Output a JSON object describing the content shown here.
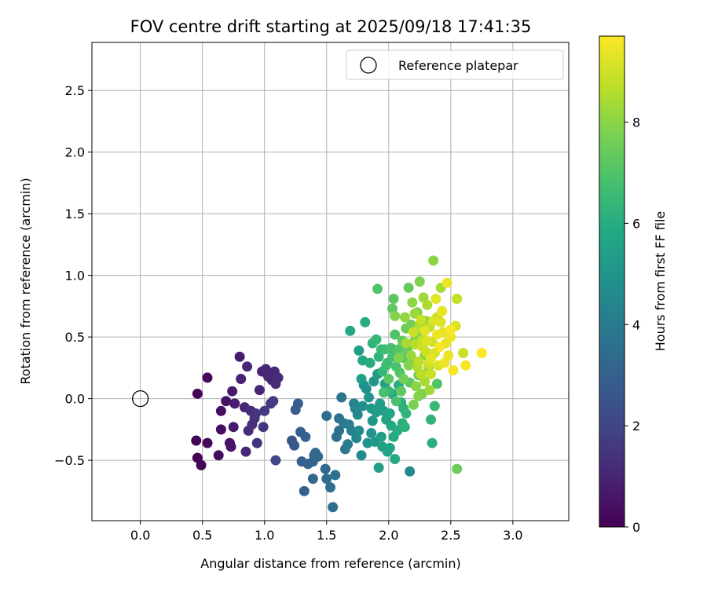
{
  "chart_data": {
    "type": "scatter",
    "title": "FOV centre drift starting at 2025/09/18 17:41:35",
    "xlabel": "Angular distance from reference (arcmin)",
    "ylabel": "Rotation from reference (arcmin)",
    "xlim": [
      -0.39,
      3.45
    ],
    "ylim": [
      -0.99,
      2.89
    ],
    "xticks": [
      0.0,
      0.5,
      1.0,
      1.5,
      2.0,
      2.5,
      3.0
    ],
    "xtick_labels": [
      "0.0",
      "0.5",
      "1.0",
      "1.5",
      "2.0",
      "2.5",
      "3.0"
    ],
    "yticks": [
      -0.5,
      0.0,
      0.5,
      1.0,
      1.5,
      2.0,
      2.5
    ],
    "ytick_labels": [
      "−0.5",
      "0.0",
      "0.5",
      "1.0",
      "1.5",
      "2.0",
      "2.5"
    ],
    "grid": true,
    "legend": {
      "position": "top-right",
      "entries": [
        "Reference platepar"
      ]
    },
    "reference_point": {
      "x": 0.0,
      "y": 0.0,
      "marker": "open circle"
    },
    "colorbar": {
      "label": "Hours from first FF file",
      "colormap": "viridis",
      "range": [
        0,
        9.7
      ],
      "ticks": [
        0,
        2,
        4,
        6,
        8
      ],
      "tick_labels": [
        "0",
        "2",
        "4",
        "6",
        "8"
      ]
    },
    "points": [
      {
        "x": 0.46,
        "y": 0.04,
        "t": 0.1
      },
      {
        "x": 0.54,
        "y": 0.17,
        "t": 0.2
      },
      {
        "x": 0.45,
        "y": -0.34,
        "t": 0.1
      },
      {
        "x": 0.46,
        "y": -0.48,
        "t": 0.1
      },
      {
        "x": 0.49,
        "y": -0.54,
        "t": 0.1
      },
      {
        "x": 0.54,
        "y": -0.36,
        "t": 0.2
      },
      {
        "x": 0.63,
        "y": -0.46,
        "t": 0.3
      },
      {
        "x": 0.65,
        "y": -0.25,
        "t": 0.4
      },
      {
        "x": 0.65,
        "y": -0.1,
        "t": 0.4
      },
      {
        "x": 0.69,
        "y": -0.02,
        "t": 0.5
      },
      {
        "x": 0.72,
        "y": -0.36,
        "t": 0.5
      },
      {
        "x": 0.73,
        "y": -0.39,
        "t": 0.6
      },
      {
        "x": 0.75,
        "y": -0.23,
        "t": 0.7
      },
      {
        "x": 0.74,
        "y": 0.06,
        "t": 0.7
      },
      {
        "x": 0.76,
        "y": -0.04,
        "t": 0.8
      },
      {
        "x": 0.8,
        "y": 0.34,
        "t": 0.8
      },
      {
        "x": 0.81,
        "y": 0.16,
        "t": 0.9
      },
      {
        "x": 0.84,
        "y": -0.07,
        "t": 1.0
      },
      {
        "x": 0.85,
        "y": -0.43,
        "t": 1.1
      },
      {
        "x": 0.86,
        "y": 0.26,
        "t": 1.1
      },
      {
        "x": 0.87,
        "y": -0.26,
        "t": 1.2
      },
      {
        "x": 0.89,
        "y": -0.1,
        "t": 1.2
      },
      {
        "x": 0.9,
        "y": -0.21,
        "t": 1.3
      },
      {
        "x": 0.92,
        "y": -0.16,
        "t": 1.3
      },
      {
        "x": 0.94,
        "y": -0.36,
        "t": 1.4
      },
      {
        "x": 0.96,
        "y": 0.07,
        "t": 1.0
      },
      {
        "x": 0.98,
        "y": 0.22,
        "t": 1.0
      },
      {
        "x": 0.99,
        "y": -0.23,
        "t": 1.5
      },
      {
        "x": 1.01,
        "y": 0.24,
        "t": 1.1
      },
      {
        "x": 1.03,
        "y": 0.18,
        "t": 1.0
      },
      {
        "x": 1.05,
        "y": -0.04,
        "t": 1.6
      },
      {
        "x": 1.06,
        "y": 0.15,
        "t": 1.1
      },
      {
        "x": 1.07,
        "y": -0.02,
        "t": 1.7
      },
      {
        "x": 1.08,
        "y": 0.22,
        "t": 1.1
      },
      {
        "x": 1.09,
        "y": 0.12,
        "t": 1.2
      },
      {
        "x": 1.11,
        "y": 0.17,
        "t": 1.2
      },
      {
        "x": 1.09,
        "y": -0.5,
        "t": 2.0
      },
      {
        "x": 1.0,
        "y": -0.1,
        "t": 1.6
      },
      {
        "x": 0.93,
        "y": -0.12,
        "t": 1.5
      },
      {
        "x": 1.22,
        "y": -0.34,
        "t": 2.6
      },
      {
        "x": 1.24,
        "y": -0.38,
        "t": 2.7
      },
      {
        "x": 1.25,
        "y": -0.09,
        "t": 2.8
      },
      {
        "x": 1.27,
        "y": -0.04,
        "t": 2.9
      },
      {
        "x": 1.29,
        "y": -0.27,
        "t": 2.9
      },
      {
        "x": 1.3,
        "y": -0.51,
        "t": 3.0
      },
      {
        "x": 1.32,
        "y": -0.75,
        "t": 3.0
      },
      {
        "x": 1.33,
        "y": -0.31,
        "t": 3.0
      },
      {
        "x": 1.35,
        "y": -0.53,
        "t": 3.1
      },
      {
        "x": 1.39,
        "y": -0.51,
        "t": 3.1
      },
      {
        "x": 1.4,
        "y": -0.46,
        "t": 3.2
      },
      {
        "x": 1.41,
        "y": -0.44,
        "t": 3.2
      },
      {
        "x": 1.39,
        "y": -0.65,
        "t": 3.3
      },
      {
        "x": 1.49,
        "y": -0.57,
        "t": 3.3
      },
      {
        "x": 1.5,
        "y": -0.14,
        "t": 3.4
      },
      {
        "x": 1.5,
        "y": -0.65,
        "t": 3.4
      },
      {
        "x": 1.53,
        "y": -0.72,
        "t": 3.5
      },
      {
        "x": 1.55,
        "y": -0.88,
        "t": 3.5
      },
      {
        "x": 1.57,
        "y": -0.62,
        "t": 3.6
      },
      {
        "x": 1.58,
        "y": -0.31,
        "t": 3.6
      },
      {
        "x": 1.6,
        "y": -0.16,
        "t": 3.7
      },
      {
        "x": 1.62,
        "y": 0.01,
        "t": 3.8
      },
      {
        "x": 1.64,
        "y": -0.2,
        "t": 3.9
      },
      {
        "x": 1.65,
        "y": -0.41,
        "t": 3.9
      },
      {
        "x": 1.67,
        "y": -0.37,
        "t": 4.0
      },
      {
        "x": 1.68,
        "y": -0.21,
        "t": 4.1
      },
      {
        "x": 1.7,
        "y": -0.26,
        "t": 4.2
      },
      {
        "x": 1.72,
        "y": -0.04,
        "t": 4.3
      },
      {
        "x": 1.74,
        "y": -0.32,
        "t": 4.4
      },
      {
        "x": 1.75,
        "y": -0.13,
        "t": 4.5
      },
      {
        "x": 1.76,
        "y": -0.26,
        "t": 4.6
      },
      {
        "x": 1.78,
        "y": -0.46,
        "t": 4.6
      },
      {
        "x": 1.79,
        "y": -0.06,
        "t": 4.7
      },
      {
        "x": 1.8,
        "y": 0.11,
        "t": 4.8
      },
      {
        "x": 1.82,
        "y": 0.08,
        "t": 4.8
      },
      {
        "x": 1.83,
        "y": -0.36,
        "t": 4.9
      },
      {
        "x": 1.84,
        "y": 0.01,
        "t": 5.0
      },
      {
        "x": 1.86,
        "y": -0.28,
        "t": 5.0
      },
      {
        "x": 1.87,
        "y": -0.18,
        "t": 5.1
      },
      {
        "x": 1.88,
        "y": 0.14,
        "t": 5.1
      },
      {
        "x": 1.89,
        "y": -0.35,
        "t": 5.2
      },
      {
        "x": 1.9,
        "y": -0.11,
        "t": 5.3
      },
      {
        "x": 1.91,
        "y": 0.2,
        "t": 5.3
      },
      {
        "x": 1.93,
        "y": -0.04,
        "t": 5.4
      },
      {
        "x": 1.94,
        "y": -0.31,
        "t": 5.4
      },
      {
        "x": 1.95,
        "y": -0.39,
        "t": 5.5
      },
      {
        "x": 1.96,
        "y": -0.1,
        "t": 5.5
      },
      {
        "x": 1.97,
        "y": 0.12,
        "t": 5.6
      },
      {
        "x": 1.98,
        "y": -0.17,
        "t": 5.6
      },
      {
        "x": 1.99,
        "y": -0.43,
        "t": 5.7
      },
      {
        "x": 2.01,
        "y": -0.12,
        "t": 5.7
      },
      {
        "x": 2.02,
        "y": -0.22,
        "t": 5.8
      },
      {
        "x": 2.03,
        "y": 0.04,
        "t": 5.8
      },
      {
        "x": 2.04,
        "y": -0.31,
        "t": 5.9
      },
      {
        "x": 2.05,
        "y": -0.49,
        "t": 5.9
      },
      {
        "x": 2.07,
        "y": -0.26,
        "t": 6.0
      },
      {
        "x": 2.08,
        "y": 0.11,
        "t": 6.0
      },
      {
        "x": 2.1,
        "y": -0.03,
        "t": 6.1
      },
      {
        "x": 2.11,
        "y": -0.2,
        "t": 6.1
      },
      {
        "x": 2.13,
        "y": -0.23,
        "t": 6.2
      },
      {
        "x": 2.14,
        "y": -0.12,
        "t": 6.3
      },
      {
        "x": 2.17,
        "y": -0.59,
        "t": 4.5
      },
      {
        "x": 1.92,
        "y": -0.56,
        "t": 5.4
      },
      {
        "x": 1.76,
        "y": 0.39,
        "t": 5.4
      },
      {
        "x": 1.69,
        "y": 0.55,
        "t": 5.8
      },
      {
        "x": 1.81,
        "y": 0.62,
        "t": 5.9
      },
      {
        "x": 1.79,
        "y": 0.31,
        "t": 5.8
      },
      {
        "x": 1.78,
        "y": 0.16,
        "t": 5.5
      },
      {
        "x": 1.85,
        "y": 0.29,
        "t": 6.0
      },
      {
        "x": 1.87,
        "y": 0.45,
        "t": 6.3
      },
      {
        "x": 1.9,
        "y": 0.48,
        "t": 6.4
      },
      {
        "x": 1.92,
        "y": 0.34,
        "t": 6.3
      },
      {
        "x": 1.94,
        "y": 0.4,
        "t": 6.5
      },
      {
        "x": 1.95,
        "y": 0.22,
        "t": 6.4
      },
      {
        "x": 1.97,
        "y": 0.4,
        "t": 6.6
      },
      {
        "x": 1.99,
        "y": 0.29,
        "t": 6.6
      },
      {
        "x": 2.0,
        "y": 0.06,
        "t": 6.4
      },
      {
        "x": 2.02,
        "y": 0.41,
        "t": 6.8
      },
      {
        "x": 2.03,
        "y": 0.34,
        "t": 6.8
      },
      {
        "x": 2.05,
        "y": 0.52,
        "t": 7.0
      },
      {
        "x": 2.06,
        "y": 0.26,
        "t": 6.9
      },
      {
        "x": 2.08,
        "y": 0.4,
        "t": 7.1
      },
      {
        "x": 2.09,
        "y": 0.21,
        "t": 7.0
      },
      {
        "x": 2.11,
        "y": 0.47,
        "t": 7.3
      },
      {
        "x": 2.12,
        "y": 0.33,
        "t": 7.2
      },
      {
        "x": 2.14,
        "y": 0.57,
        "t": 7.5
      },
      {
        "x": 2.15,
        "y": 0.4,
        "t": 7.4
      },
      {
        "x": 2.17,
        "y": 0.13,
        "t": 7.2
      },
      {
        "x": 2.18,
        "y": 0.6,
        "t": 7.6
      },
      {
        "x": 2.2,
        "y": 0.3,
        "t": 7.5
      },
      {
        "x": 2.21,
        "y": 0.47,
        "t": 7.7
      },
      {
        "x": 2.23,
        "y": 0.7,
        "t": 7.8
      },
      {
        "x": 2.24,
        "y": 0.19,
        "t": 7.6
      },
      {
        "x": 2.26,
        "y": 0.52,
        "t": 7.9
      },
      {
        "x": 2.27,
        "y": 0.04,
        "t": 7.8
      },
      {
        "x": 2.29,
        "y": 0.35,
        "t": 8.0
      },
      {
        "x": 2.3,
        "y": 0.63,
        "t": 8.1
      },
      {
        "x": 2.32,
        "y": 0.25,
        "t": 8.1
      },
      {
        "x": 2.34,
        "y": -0.17,
        "t": 6.3
      },
      {
        "x": 2.35,
        "y": -0.36,
        "t": 6.1
      },
      {
        "x": 2.37,
        "y": -0.06,
        "t": 6.5
      },
      {
        "x": 2.39,
        "y": 0.12,
        "t": 7.0
      },
      {
        "x": 2.55,
        "y": -0.57,
        "t": 7.5
      },
      {
        "x": 1.91,
        "y": 0.89,
        "t": 7.0
      },
      {
        "x": 2.04,
        "y": 0.81,
        "t": 7.2
      },
      {
        "x": 2.03,
        "y": 0.73,
        "t": 7.3
      },
      {
        "x": 2.16,
        "y": 0.9,
        "t": 7.4
      },
      {
        "x": 2.25,
        "y": 0.95,
        "t": 7.8
      },
      {
        "x": 2.36,
        "y": 1.12,
        "t": 8.0
      },
      {
        "x": 2.42,
        "y": 0.9,
        "t": 8.4
      },
      {
        "x": 2.19,
        "y": 0.78,
        "t": 8.0
      },
      {
        "x": 2.28,
        "y": 0.82,
        "t": 8.3
      },
      {
        "x": 2.21,
        "y": 0.69,
        "t": 8.2
      },
      {
        "x": 2.31,
        "y": 0.76,
        "t": 8.5
      },
      {
        "x": 2.05,
        "y": 0.67,
        "t": 7.9
      },
      {
        "x": 2.13,
        "y": 0.66,
        "t": 8.1
      },
      {
        "x": 2.25,
        "y": 0.6,
        "t": 8.6
      },
      {
        "x": 2.33,
        "y": 0.58,
        "t": 8.8
      },
      {
        "x": 2.27,
        "y": 0.47,
        "t": 8.8
      },
      {
        "x": 2.35,
        "y": 0.46,
        "t": 9.0
      },
      {
        "x": 2.21,
        "y": 0.44,
        "t": 8.6
      },
      {
        "x": 2.3,
        "y": 0.38,
        "t": 8.9
      },
      {
        "x": 2.37,
        "y": 0.37,
        "t": 9.1
      },
      {
        "x": 2.24,
        "y": 0.3,
        "t": 8.7
      },
      {
        "x": 2.32,
        "y": 0.28,
        "t": 9.0
      },
      {
        "x": 2.4,
        "y": 0.27,
        "t": 9.2
      },
      {
        "x": 2.26,
        "y": 0.2,
        "t": 8.7
      },
      {
        "x": 2.34,
        "y": 0.2,
        "t": 8.9
      },
      {
        "x": 2.42,
        "y": 0.62,
        "t": 9.2
      },
      {
        "x": 2.44,
        "y": 0.54,
        "t": 9.3
      },
      {
        "x": 2.46,
        "y": 0.45,
        "t": 9.4
      },
      {
        "x": 2.48,
        "y": 0.35,
        "t": 9.4
      },
      {
        "x": 2.38,
        "y": 0.81,
        "t": 9.3
      },
      {
        "x": 2.47,
        "y": 0.94,
        "t": 9.5
      },
      {
        "x": 2.5,
        "y": 0.5,
        "t": 9.5
      },
      {
        "x": 2.52,
        "y": 0.23,
        "t": 9.6
      },
      {
        "x": 2.45,
        "y": 0.29,
        "t": 9.5
      },
      {
        "x": 2.54,
        "y": 0.59,
        "t": 9.1
      },
      {
        "x": 2.55,
        "y": 0.81,
        "t": 8.8
      },
      {
        "x": 2.6,
        "y": 0.37,
        "t": 8.9
      },
      {
        "x": 2.62,
        "y": 0.27,
        "t": 9.6
      },
      {
        "x": 2.75,
        "y": 0.37,
        "t": 9.7
      },
      {
        "x": 2.5,
        "y": 0.56,
        "t": 9.6
      },
      {
        "x": 2.39,
        "y": 0.52,
        "t": 9.5
      },
      {
        "x": 2.29,
        "y": 0.55,
        "t": 9.3
      },
      {
        "x": 2.36,
        "y": 0.63,
        "t": 9.2
      },
      {
        "x": 2.41,
        "y": 0.42,
        "t": 9.6
      },
      {
        "x": 2.43,
        "y": 0.71,
        "t": 9.4
      },
      {
        "x": 2.2,
        "y": 0.54,
        "t": 8.9
      },
      {
        "x": 2.18,
        "y": 0.35,
        "t": 8.2
      },
      {
        "x": 2.16,
        "y": 0.27,
        "t": 7.9
      },
      {
        "x": 2.12,
        "y": 0.16,
        "t": 7.6
      },
      {
        "x": 2.1,
        "y": 0.06,
        "t": 7.3
      },
      {
        "x": 2.06,
        "y": -0.02,
        "t": 6.9
      },
      {
        "x": 2.0,
        "y": 0.16,
        "t": 7.2
      },
      {
        "x": 1.96,
        "y": 0.05,
        "t": 6.8
      },
      {
        "x": 2.22,
        "y": 0.1,
        "t": 8.0
      },
      {
        "x": 2.29,
        "y": 0.14,
        "t": 8.4
      },
      {
        "x": 2.33,
        "y": 0.07,
        "t": 8.3
      },
      {
        "x": 2.2,
        "y": -0.05,
        "t": 7.7
      },
      {
        "x": 2.24,
        "y": 0.02,
        "t": 7.9
      },
      {
        "x": 2.27,
        "y": 0.42,
        "t": 9.0
      },
      {
        "x": 2.31,
        "y": 0.47,
        "t": 9.2
      },
      {
        "x": 2.34,
        "y": 0.33,
        "t": 9.3
      },
      {
        "x": 2.23,
        "y": 0.26,
        "t": 8.5
      },
      {
        "x": 2.14,
        "y": 0.45,
        "t": 8.4
      },
      {
        "x": 2.08,
        "y": 0.33,
        "t": 7.8
      },
      {
        "x": 2.26,
        "y": 0.64,
        "t": 8.9
      },
      {
        "x": 2.39,
        "y": 0.66,
        "t": 9.0
      },
      {
        "x": 1.98,
        "y": 0.27,
        "t": 6.7
      },
      {
        "x": 2.12,
        "y": -0.08,
        "t": 6.2
      },
      {
        "x": 1.86,
        "y": -0.08,
        "t": 5.2
      },
      {
        "x": 1.73,
        "y": -0.08,
        "t": 4.5
      },
      {
        "x": 1.6,
        "y": -0.26,
        "t": 3.6
      },
      {
        "x": 1.43,
        "y": -0.47,
        "t": 3.3
      },
      {
        "x": 2.01,
        "y": -0.4,
        "t": 5.6
      }
    ]
  }
}
